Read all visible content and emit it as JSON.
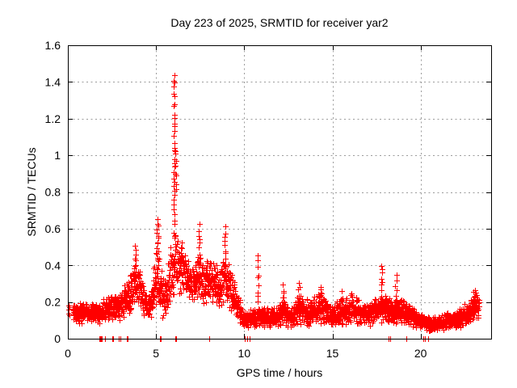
{
  "page": {
    "background": "#ffffff"
  },
  "chart_data": {
    "type": "scatter",
    "title": "Day 223 of 2025, SRMTID for receiver yar2",
    "xlabel": "GPS time / hours",
    "ylabel": "SRMTID / TECUs",
    "series_name": "SRMTID for receiver yar2",
    "xlim": [
      0,
      24
    ],
    "ylim": [
      0,
      1.6
    ],
    "xticks": {
      "values": [
        0,
        5,
        10,
        15,
        20
      ],
      "labels": [
        "0",
        "5",
        "10",
        "15",
        "20"
      ]
    },
    "yticks": {
      "values": [
        0,
        0.2,
        0.4,
        0.6,
        0.8,
        1.0,
        1.2,
        1.4,
        1.6
      ],
      "labels": [
        "0",
        "0.2",
        "0.4",
        "0.6",
        "0.8",
        "1",
        "1.2",
        "1.4",
        "1.6"
      ]
    },
    "grid": true,
    "legend_position": "none",
    "marker": "plus",
    "marker_size_px": 7,
    "marker_color": "#ff0000",
    "grid_color": "#9c9c9c",
    "axis_color": "#000000",
    "background_color": "#ffffff",
    "peak": {
      "t_hours": 6.05,
      "value_tecus": 1.45
    },
    "approx_total_points": 2880,
    "sampling": {
      "seed": 20250223,
      "points_per_hour": 124,
      "data_start_hour": 0.0,
      "data_end_hour": 23.32,
      "sparse_before_hour": 0.3,
      "sparse_keep_fraction": 0.12
    },
    "band_keyframes": [
      [
        0.0,
        0.09,
        0.19
      ],
      [
        0.5,
        0.08,
        0.2
      ],
      [
        1.2,
        0.08,
        0.2
      ],
      [
        2.0,
        0.08,
        0.22
      ],
      [
        2.8,
        0.09,
        0.25
      ],
      [
        3.3,
        0.12,
        0.32
      ],
      [
        3.8,
        0.16,
        0.44
      ],
      [
        4.05,
        0.16,
        0.4
      ],
      [
        4.5,
        0.09,
        0.26
      ],
      [
        4.75,
        0.1,
        0.3
      ],
      [
        5.0,
        0.14,
        0.5
      ],
      [
        5.25,
        0.1,
        0.42
      ],
      [
        5.55,
        0.09,
        0.33
      ],
      [
        5.85,
        0.18,
        0.55
      ],
      [
        6.05,
        0.22,
        0.62
      ],
      [
        6.25,
        0.22,
        0.58
      ],
      [
        6.6,
        0.22,
        0.5
      ],
      [
        6.9,
        0.2,
        0.45
      ],
      [
        7.15,
        0.16,
        0.38
      ],
      [
        7.45,
        0.18,
        0.5
      ],
      [
        7.7,
        0.16,
        0.4
      ],
      [
        8.1,
        0.18,
        0.46
      ],
      [
        8.5,
        0.15,
        0.4
      ],
      [
        8.9,
        0.18,
        0.48
      ],
      [
        9.2,
        0.14,
        0.42
      ],
      [
        9.6,
        0.09,
        0.28
      ],
      [
        9.95,
        0.05,
        0.16
      ],
      [
        10.4,
        0.05,
        0.17
      ],
      [
        10.9,
        0.06,
        0.18
      ],
      [
        11.4,
        0.05,
        0.17
      ],
      [
        11.9,
        0.06,
        0.19
      ],
      [
        12.2,
        0.07,
        0.24
      ],
      [
        12.6,
        0.05,
        0.17
      ],
      [
        13.1,
        0.07,
        0.26
      ],
      [
        13.6,
        0.06,
        0.22
      ],
      [
        14.1,
        0.07,
        0.24
      ],
      [
        14.45,
        0.08,
        0.26
      ],
      [
        15.0,
        0.05,
        0.19
      ],
      [
        15.6,
        0.07,
        0.23
      ],
      [
        16.1,
        0.08,
        0.26
      ],
      [
        16.6,
        0.07,
        0.21
      ],
      [
        17.1,
        0.07,
        0.2
      ],
      [
        17.6,
        0.09,
        0.24
      ],
      [
        18.0,
        0.08,
        0.26
      ],
      [
        18.4,
        0.07,
        0.23
      ],
      [
        18.8,
        0.08,
        0.24
      ],
      [
        19.3,
        0.06,
        0.2
      ],
      [
        19.8,
        0.05,
        0.16
      ],
      [
        20.3,
        0.04,
        0.13
      ],
      [
        21.0,
        0.04,
        0.13
      ],
      [
        21.6,
        0.05,
        0.15
      ],
      [
        22.1,
        0.05,
        0.16
      ],
      [
        22.6,
        0.07,
        0.2
      ],
      [
        23.0,
        0.09,
        0.26
      ],
      [
        23.32,
        0.1,
        0.24
      ]
    ],
    "spike_columns": [
      {
        "t": 3.85,
        "halfwidth": 0.12,
        "vmin": 0.3,
        "vmax": 0.52,
        "n": 10
      },
      {
        "t": 5.07,
        "halfwidth": 0.05,
        "vmin": 0.42,
        "vmax": 0.66,
        "n": 14
      },
      {
        "t": 6.03,
        "halfwidth": 0.03,
        "vmin": 0.55,
        "vmax": 1.46,
        "n": 34
      },
      {
        "t": 6.12,
        "halfwidth": 0.05,
        "vmin": 0.8,
        "vmax": 1.05,
        "n": 8
      },
      {
        "t": 7.45,
        "halfwidth": 0.05,
        "vmin": 0.38,
        "vmax": 0.63,
        "n": 10
      },
      {
        "t": 8.9,
        "halfwidth": 0.05,
        "vmin": 0.38,
        "vmax": 0.62,
        "n": 10
      },
      {
        "t": 10.78,
        "halfwidth": 0.04,
        "vmin": 0.15,
        "vmax": 0.47,
        "n": 10
      },
      {
        "t": 12.2,
        "halfwidth": 0.05,
        "vmin": 0.16,
        "vmax": 0.3,
        "n": 6
      },
      {
        "t": 13.1,
        "halfwidth": 0.06,
        "vmin": 0.16,
        "vmax": 0.32,
        "n": 7
      },
      {
        "t": 14.35,
        "halfwidth": 0.08,
        "vmin": 0.15,
        "vmax": 0.3,
        "n": 8
      },
      {
        "t": 15.55,
        "halfwidth": 0.05,
        "vmin": 0.14,
        "vmax": 0.27,
        "n": 5
      },
      {
        "t": 17.78,
        "halfwidth": 0.05,
        "vmin": 0.18,
        "vmax": 0.42,
        "n": 10
      },
      {
        "t": 18.6,
        "halfwidth": 0.05,
        "vmin": 0.16,
        "vmax": 0.35,
        "n": 8
      },
      {
        "t": 23.1,
        "halfwidth": 0.1,
        "vmin": 0.14,
        "vmax": 0.28,
        "n": 10
      }
    ],
    "zero_value_times": [
      1.8,
      1.84,
      1.88,
      1.93,
      2.1,
      2.5,
      2.56,
      2.9,
      2.96,
      3.35,
      3.41,
      5.2,
      5.26,
      6.1,
      6.16,
      8.0,
      10.05,
      10.15,
      10.32,
      18.2,
      18.28,
      19.2,
      20.15,
      20.25,
      20.42
    ],
    "extra_points": [
      [
        0.05,
        0.16
      ],
      [
        0.07,
        0.13
      ],
      [
        0.1,
        0.17
      ]
    ]
  }
}
